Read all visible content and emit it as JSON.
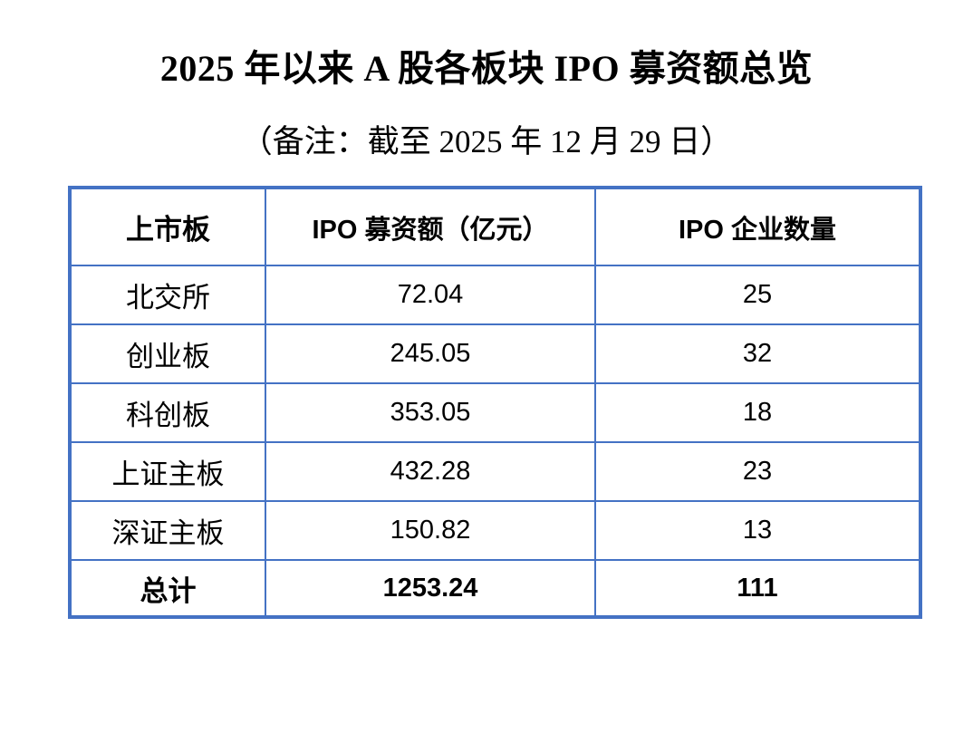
{
  "page": {
    "background_color": "#ffffff",
    "text_color": "#000000"
  },
  "title": "2025 年以来 A 股各板块 IPO 募资额总览",
  "subtitle": "（备注：截至 2025 年 12 月 29 日）",
  "table": {
    "border_color": "#4472C4",
    "headers": {
      "board": "上市板",
      "amount": "IPO 募资额（亿元）",
      "count": "IPO 企业数量"
    },
    "rows": [
      {
        "board": "北交所",
        "amount": "72.04",
        "count": "25"
      },
      {
        "board": "创业板",
        "amount": "245.05",
        "count": "32"
      },
      {
        "board": "科创板",
        "amount": "353.05",
        "count": "18"
      },
      {
        "board": "上证主板",
        "amount": "432.28",
        "count": "23"
      },
      {
        "board": "深证主板",
        "amount": "150.82",
        "count": "13"
      }
    ],
    "total": {
      "board": "总计",
      "amount": "1253.24",
      "count": "111"
    }
  }
}
